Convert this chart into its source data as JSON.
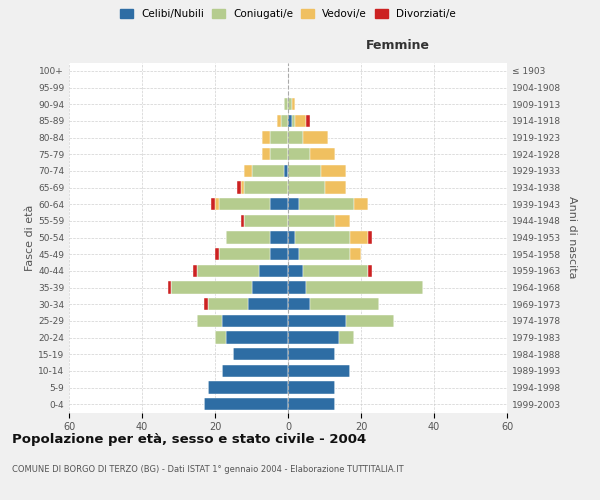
{
  "age_groups": [
    "100+",
    "95-99",
    "90-94",
    "85-89",
    "80-84",
    "75-79",
    "70-74",
    "65-69",
    "60-64",
    "55-59",
    "50-54",
    "45-49",
    "40-44",
    "35-39",
    "30-34",
    "25-29",
    "20-24",
    "15-19",
    "10-14",
    "5-9",
    "0-4"
  ],
  "birth_years": [
    "≤ 1903",
    "1904-1908",
    "1909-1913",
    "1914-1918",
    "1919-1923",
    "1924-1928",
    "1929-1933",
    "1934-1938",
    "1939-1943",
    "1944-1948",
    "1949-1953",
    "1954-1958",
    "1959-1963",
    "1964-1968",
    "1969-1973",
    "1974-1978",
    "1979-1983",
    "1984-1988",
    "1989-1993",
    "1994-1998",
    "1999-2003"
  ],
  "male": {
    "celibi": [
      0,
      0,
      0,
      0,
      0,
      0,
      1,
      0,
      5,
      0,
      5,
      5,
      8,
      10,
      11,
      18,
      17,
      15,
      18,
      22,
      23
    ],
    "coniugati": [
      0,
      0,
      1,
      2,
      5,
      5,
      9,
      12,
      14,
      12,
      12,
      14,
      17,
      22,
      11,
      7,
      3,
      0,
      0,
      0,
      0
    ],
    "vedovi": [
      0,
      0,
      0,
      1,
      2,
      2,
      2,
      1,
      1,
      0,
      0,
      0,
      0,
      0,
      0,
      0,
      0,
      0,
      0,
      0,
      0
    ],
    "divorziati": [
      0,
      0,
      0,
      0,
      0,
      0,
      0,
      1,
      1,
      1,
      0,
      1,
      1,
      1,
      1,
      0,
      0,
      0,
      0,
      0,
      0
    ]
  },
  "female": {
    "nubili": [
      0,
      0,
      0,
      1,
      0,
      0,
      0,
      0,
      3,
      0,
      2,
      3,
      4,
      5,
      6,
      16,
      14,
      13,
      17,
      13,
      13
    ],
    "coniugate": [
      0,
      0,
      1,
      1,
      4,
      6,
      9,
      10,
      15,
      13,
      15,
      14,
      18,
      32,
      19,
      13,
      4,
      0,
      0,
      0,
      0
    ],
    "vedove": [
      0,
      0,
      1,
      3,
      7,
      7,
      7,
      6,
      4,
      4,
      5,
      3,
      0,
      0,
      0,
      0,
      0,
      0,
      0,
      0,
      0
    ],
    "divorziate": [
      0,
      0,
      0,
      1,
      0,
      0,
      0,
      0,
      0,
      0,
      1,
      0,
      1,
      0,
      0,
      0,
      0,
      0,
      0,
      0,
      0
    ]
  },
  "colors": {
    "celibi": "#2e6da4",
    "coniugati": "#b5cc8e",
    "vedovi": "#f0c060",
    "divorziati": "#cc2222"
  },
  "title": "Popolazione per età, sesso e stato civile - 2004",
  "subtitle": "COMUNE DI BORGO DI TERZO (BG) - Dati ISTAT 1° gennaio 2004 - Elaborazione TUTTITALIA.IT",
  "xlabel_right": "Femmine",
  "ylabel_left": "Fasce di età",
  "ylabel_right": "Anni di nascita",
  "xlim": 60,
  "bg_color": "#f0f0f0",
  "plot_bg_color": "#ffffff",
  "grid_color": "#cccccc"
}
